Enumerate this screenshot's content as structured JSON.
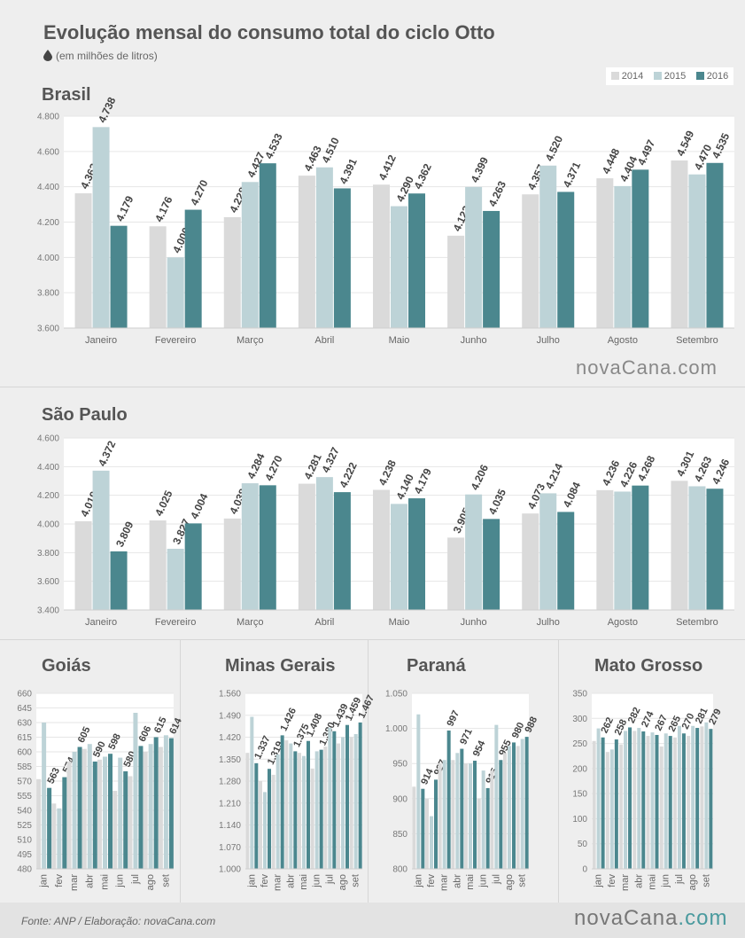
{
  "title": "Evolução mensal do consumo total do ciclo Otto",
  "subtitle": "(em milhões de litros)",
  "legend": [
    "2014",
    "2015",
    "2016"
  ],
  "colors": {
    "2014": "#dadada",
    "2015": "#bdd3d7",
    "2016": "#4b878e"
  },
  "footer": {
    "source": "Fonte: ANP  / Elaboração: novaCana.com",
    "brand_main": "novaCana",
    "brand_suffix": ".com"
  },
  "watermark": "novaCana.com",
  "chart_data": [
    {
      "id": "brasil",
      "type": "bar",
      "title": "Brasil",
      "categories": [
        "Janeiro",
        "Fevereiro",
        "Março",
        "Abril",
        "Maio",
        "Junho",
        "Julho",
        "Agosto",
        "Setembro"
      ],
      "yticks": [
        "4.800",
        "4.600",
        "4.400",
        "4.200",
        "4.000",
        "3.800",
        "3.600"
      ],
      "ylim": [
        3600,
        4800
      ],
      "series": [
        {
          "name": "2014",
          "values": [
            4363,
            4176,
            4228,
            4463,
            4412,
            4123,
            4357,
            4448,
            4549
          ],
          "labels": [
            "4.363",
            "4.176",
            "4.228",
            "4.463",
            "4.412",
            "4.123",
            "4.357",
            "4.448",
            "4.549"
          ]
        },
        {
          "name": "2015",
          "values": [
            4738,
            4000,
            4427,
            4510,
            4290,
            4399,
            4520,
            4404,
            4470
          ],
          "labels": [
            "4.738",
            "4.000",
            "4.427",
            "4.510",
            "4.290",
            "4.399",
            "4.520",
            "4.404",
            "4.470"
          ]
        },
        {
          "name": "2016",
          "values": [
            4179,
            4270,
            4533,
            4391,
            4362,
            4263,
            4371,
            4497,
            4535
          ],
          "labels": [
            "4.179",
            "4.270",
            "4.533",
            "4.391",
            "4.362",
            "4.263",
            "4.371",
            "4.497",
            "4.535"
          ]
        }
      ]
    },
    {
      "id": "sp",
      "type": "bar",
      "title": "São Paulo",
      "categories": [
        "Janeiro",
        "Fevereiro",
        "Março",
        "Abril",
        "Maio",
        "Junho",
        "Julho",
        "Agosto",
        "Setembro"
      ],
      "yticks": [
        "4.600",
        "4.400",
        "4.200",
        "4.000",
        "3.800",
        "3.600",
        "3.400"
      ],
      "ylim": [
        3400,
        4600
      ],
      "series": [
        {
          "name": "2014",
          "values": [
            4019,
            4025,
            4038,
            4281,
            4238,
            3905,
            4073,
            4236,
            4301
          ],
          "labels": [
            "4.019",
            "4.025",
            "4.038",
            "4.281",
            "4.238",
            "3.905",
            "4.073",
            "4.236",
            "4.301"
          ]
        },
        {
          "name": "2015",
          "values": [
            4372,
            3827,
            4284,
            4327,
            4140,
            4206,
            4214,
            4226,
            4263
          ],
          "labels": [
            "4.372",
            "3.827",
            "4.284",
            "4.327",
            "4.140",
            "4.206",
            "4.214",
            "4.226",
            "4.263"
          ]
        },
        {
          "name": "2016",
          "values": [
            3809,
            4004,
            4270,
            4222,
            4179,
            4035,
            4084,
            4268,
            4246
          ],
          "labels": [
            "3.809",
            "4.004",
            "4.270",
            "4.222",
            "4.179",
            "4.035",
            "4.084",
            "4.268",
            "4.246"
          ]
        }
      ]
    },
    {
      "id": "goias",
      "type": "bar",
      "title": "Goiás",
      "categories": [
        "jan",
        "fev",
        "mar",
        "abr",
        "mai",
        "jun",
        "jul",
        "ago",
        "set"
      ],
      "yticks": [
        "660",
        "645",
        "630",
        "615",
        "600",
        "585",
        "570",
        "555",
        "540",
        "525",
        "510",
        "495",
        "480"
      ],
      "ylim": [
        480,
        660
      ],
      "series": [
        {
          "name": "2014",
          "values": [
            572,
            547,
            590,
            603,
            592,
            560,
            575,
            600,
            605
          ]
        },
        {
          "name": "2015",
          "values": [
            630,
            542,
            600,
            608,
            595,
            594,
            640,
            608,
            617
          ]
        },
        {
          "name": "2016",
          "values": [
            563,
            574,
            605,
            590,
            598,
            580,
            606,
            615,
            614
          ],
          "labels": [
            "563",
            "574",
            "605",
            "590",
            "598",
            "580",
            "606",
            "615",
            "614"
          ]
        }
      ]
    },
    {
      "id": "mg",
      "type": "bar",
      "title": "Minas Gerais",
      "categories": [
        "jan",
        "fev",
        "mar",
        "abr",
        "mai",
        "jun",
        "jul",
        "ago",
        "set"
      ],
      "yticks": [
        "1.560",
        "1.490",
        "1.420",
        "1.350",
        "1.280",
        "1.210",
        "1.140",
        "1.070",
        "1.000"
      ],
      "ylim": [
        1000,
        1560
      ],
      "series": [
        {
          "name": "2014",
          "values": [
            1370,
            1280,
            1300,
            1410,
            1370,
            1320,
            1390,
            1400,
            1420
          ]
        },
        {
          "name": "2015",
          "values": [
            1485,
            1245,
            1365,
            1400,
            1360,
            1375,
            1450,
            1420,
            1430
          ]
        },
        {
          "name": "2016",
          "values": [
            1337,
            1319,
            1426,
            1375,
            1408,
            1380,
            1439,
            1459,
            1467
          ],
          "labels": [
            "1.337",
            "1.319",
            "1.426",
            "1.375",
            "1.408",
            "1.380",
            "1.439",
            "1.459",
            "1.467"
          ]
        }
      ]
    },
    {
      "id": "pr",
      "type": "bar",
      "title": "Paraná",
      "categories": [
        "jan",
        "fev",
        "mar",
        "abr",
        "mai",
        "jun",
        "jul",
        "ago",
        "set"
      ],
      "yticks": [
        "1.050",
        "1.000",
        "950",
        "900",
        "850",
        "800"
      ],
      "ylim": [
        800,
        1050
      ],
      "series": [
        {
          "name": "2014",
          "values": [
            917,
            900,
            950,
            955,
            950,
            900,
            940,
            965,
            975
          ]
        },
        {
          "name": "2015",
          "values": [
            1020,
            875,
            955,
            965,
            950,
            940,
            1005,
            975,
            985
          ]
        },
        {
          "name": "2016",
          "values": [
            914,
            927,
            997,
            971,
            954,
            915,
            955,
            980,
            988
          ],
          "labels": [
            "914",
            "927",
            "997",
            "971",
            "954",
            "915",
            "955",
            "980",
            "988"
          ]
        }
      ]
    },
    {
      "id": "mt",
      "type": "bar",
      "title": "Mato Grosso",
      "categories": [
        "jan",
        "fev",
        "mar",
        "abr",
        "mai",
        "jun",
        "jul",
        "ago",
        "set"
      ],
      "yticks": [
        "350",
        "300",
        "250",
        "200",
        "150",
        "100",
        "50",
        "0"
      ],
      "ylim": [
        0,
        350
      ],
      "series": [
        {
          "name": "2014",
          "values": [
            255,
            233,
            248,
            275,
            265,
            244,
            262,
            265,
            284
          ]
        },
        {
          "name": "2015",
          "values": [
            280,
            238,
            275,
            281,
            272,
            270,
            285,
            285,
            292
          ]
        },
        {
          "name": "2016",
          "values": [
            262,
            258,
            282,
            274,
            267,
            265,
            270,
            281,
            279
          ],
          "labels": [
            "262",
            "258",
            "282",
            "274",
            "267",
            "265",
            "270",
            "281",
            "279"
          ]
        }
      ]
    }
  ]
}
